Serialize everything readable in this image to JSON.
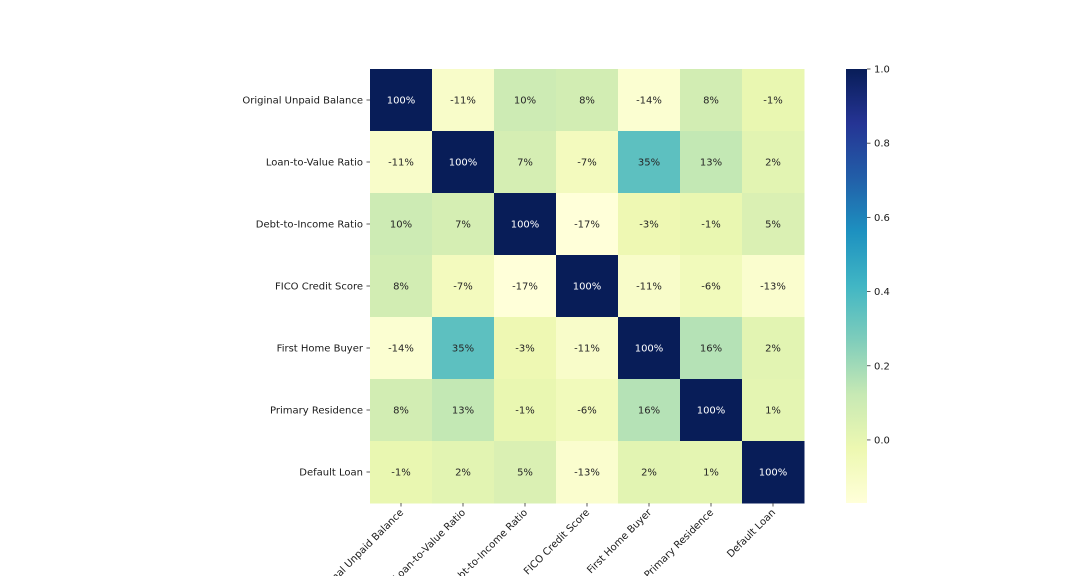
{
  "chart_data": {
    "type": "heatmap",
    "title": "",
    "xlabel": "",
    "ylabel": "",
    "row_labels": [
      "Original Unpaid Balance",
      "Loan-to-Value Ratio",
      "Debt-to-Income Ratio",
      "FICO Credit Score",
      "First Home Buyer",
      "Primary Residence",
      "Default Loan"
    ],
    "col_labels": [
      "Original Unpaid Balance",
      "Loan-to-Value Ratio",
      "Debt-to-Income Ratio",
      "FICO Credit Score",
      "First Home Buyer",
      "Primary Residence",
      "Default Loan"
    ],
    "values": [
      [
        1.0,
        -0.11,
        0.1,
        0.08,
        -0.14,
        0.08,
        -0.01
      ],
      [
        -0.11,
        1.0,
        0.07,
        -0.07,
        0.35,
        0.13,
        0.02
      ],
      [
        0.1,
        0.07,
        1.0,
        -0.17,
        -0.03,
        -0.01,
        0.05
      ],
      [
        0.08,
        -0.07,
        -0.17,
        1.0,
        -0.11,
        -0.06,
        -0.13
      ],
      [
        -0.14,
        0.35,
        -0.03,
        -0.11,
        1.0,
        0.16,
        0.02
      ],
      [
        0.08,
        0.13,
        -0.01,
        -0.06,
        0.16,
        1.0,
        0.01
      ],
      [
        -0.01,
        0.02,
        0.05,
        -0.13,
        0.02,
        0.01,
        1.0
      ]
    ],
    "annotations": [
      [
        "100%",
        "-11%",
        "10%",
        "8%",
        "-14%",
        "8%",
        "-1%"
      ],
      [
        "-11%",
        "100%",
        "7%",
        "-7%",
        "35%",
        "13%",
        "2%"
      ],
      [
        "10%",
        "7%",
        "100%",
        "-17%",
        "-3%",
        "-1%",
        "5%"
      ],
      [
        "8%",
        "-7%",
        "-17%",
        "100%",
        "-11%",
        "-6%",
        "-13%"
      ],
      [
        "-14%",
        "35%",
        "-3%",
        "-11%",
        "100%",
        "16%",
        "2%"
      ],
      [
        "8%",
        "13%",
        "-1%",
        "-6%",
        "16%",
        "100%",
        "1%"
      ],
      [
        "-1%",
        "2%",
        "5%",
        "-13%",
        "2%",
        "1%",
        "100%"
      ]
    ],
    "colormap": "YlGnBu",
    "colormap_stops": [
      "#ffffd9",
      "#edf8b1",
      "#c7e9b4",
      "#7fcdbb",
      "#41b6c4",
      "#1d91c0",
      "#225ea8",
      "#253494",
      "#081d58"
    ],
    "vmin": -0.17,
    "vmax": 1.0,
    "colorbar": {
      "ticks": [
        0.0,
        0.2,
        0.4,
        0.6,
        0.8,
        1.0
      ],
      "tick_labels": [
        "0.0",
        "0.2",
        "0.4",
        "0.6",
        "0.8",
        "1.0"
      ]
    },
    "x_tick_rotation_deg": 45,
    "grid": false,
    "legend": "colorbar-right"
  }
}
